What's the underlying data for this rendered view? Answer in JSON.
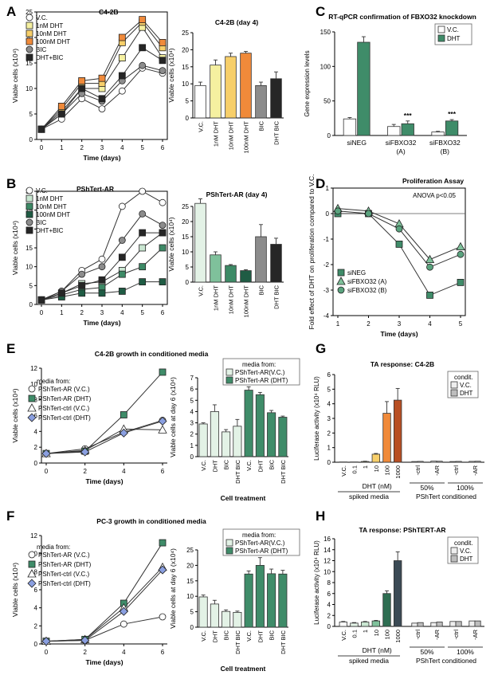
{
  "figure": {
    "colors": {
      "vc": "#ffffff",
      "dht1": "#f5f0a0",
      "dht10": "#f7cf6a",
      "dht100": "#f08a3a",
      "bic": "#8c8c8c",
      "dhtbic": "#262626",
      "g1": "#c9e6d1",
      "g2": "#7fc19b",
      "g3": "#3d8a66",
      "g4": "#1f5c44",
      "green": "#3f8c69",
      "lightgreen": "#e3f2e6",
      "darkgreen": "#2e6e52",
      "ctrl": "#eeeeee",
      "dhtgrey": "#bdbdbd",
      "blue": "#8a9fe0",
      "grey": "#bdbdbd",
      "dark": "#3b4a55"
    }
  },
  "panels": {
    "A": {
      "letter": "A"
    },
    "B": {
      "letter": "B"
    },
    "C": {
      "letter": "C"
    },
    "D": {
      "letter": "D"
    },
    "E": {
      "letter": "E"
    },
    "F": {
      "letter": "F"
    },
    "G": {
      "letter": "G"
    },
    "H": {
      "letter": "H"
    }
  },
  "chart_data": [
    {
      "id": "A_line",
      "type": "line",
      "title": "C4-2B",
      "xlabel": "Time (days)",
      "ylabel": "Viable cells (x10⁴)",
      "xlim": [
        0,
        6
      ],
      "ylim": [
        0,
        25
      ],
      "xticks": [
        0,
        1,
        2,
        3,
        4,
        5,
        6
      ],
      "yticks": [
        0,
        5,
        10,
        15,
        20,
        25
      ],
      "x": [
        0,
        1,
        2,
        3,
        4,
        5,
        6
      ],
      "series": [
        {
          "name": "V.C.",
          "marker": "circle",
          "color": "#ffffff",
          "values": [
            2,
            4,
            8,
            6,
            9.5,
            14,
            13
          ]
        },
        {
          "name": "1nM DHT",
          "marker": "square",
          "color": "#f5f0a0",
          "values": [
            2,
            5.5,
            10,
            10,
            16,
            22,
            16
          ]
        },
        {
          "name": "10nM DHT",
          "marker": "square",
          "color": "#f7cf6a",
          "values": [
            2,
            6,
            11,
            11,
            19,
            23,
            18
          ]
        },
        {
          "name": "100nM DHT",
          "marker": "square",
          "color": "#f08a3a",
          "values": [
            2,
            6.5,
            11.5,
            12,
            20,
            23.5,
            19
          ]
        },
        {
          "name": "BIC",
          "marker": "circle",
          "color": "#8c8c8c",
          "values": [
            2,
            5,
            9,
            7.5,
            11.5,
            14.5,
            13.5
          ]
        },
        {
          "name": "DHT+BIC",
          "marker": "square",
          "color": "#262626",
          "values": [
            2,
            5,
            10,
            8,
            12.5,
            18,
            15.5
          ]
        }
      ]
    },
    {
      "id": "A_bar",
      "type": "bar",
      "title": "C4-2B (day 4)",
      "ylabel": "Viable cells (x10⁴)",
      "ylim": [
        0,
        25
      ],
      "yticks": [
        0,
        5,
        10,
        15,
        20,
        25
      ],
      "categories": [
        "V.C.",
        "1nM DHT",
        "10nM DHT",
        "100nM DHT",
        "BIC",
        "DHT BIC"
      ],
      "values": [
        9.5,
        15.5,
        18,
        19,
        9.5,
        11.5
      ],
      "errors": [
        1,
        1.5,
        1,
        0.5,
        1,
        2
      ],
      "colors": [
        "#ffffff",
        "#f5f0a0",
        "#f7cf6a",
        "#f08a3a",
        "#8c8c8c",
        "#262626"
      ]
    },
    {
      "id": "B_line",
      "type": "line",
      "title": "PShTert-AR",
      "xlabel": "Time (days)",
      "ylabel": "Viable cells (x10⁴)",
      "xlim": [
        0,
        6
      ],
      "ylim": [
        0,
        30
      ],
      "xticks": [
        0,
        1,
        2,
        3,
        4,
        5,
        6
      ],
      "yticks": [
        0,
        5,
        10,
        15,
        20,
        25,
        30
      ],
      "x": [
        0,
        1,
        2,
        3,
        4,
        5,
        6
      ],
      "series": [
        {
          "name": "V.C.",
          "marker": "circle",
          "color": "#ffffff",
          "values": [
            1.2,
            3.5,
            9,
            12,
            26,
            30,
            27
          ]
        },
        {
          "name": "1nM DHT",
          "marker": "square",
          "color": "#c9e6d1",
          "values": [
            1.2,
            3,
            5.5,
            6,
            9,
            15,
            19
          ]
        },
        {
          "name": "10nM DHT",
          "marker": "square",
          "color": "#3d8a66",
          "values": [
            1.2,
            2.5,
            4,
            4.5,
            8,
            10,
            15
          ]
        },
        {
          "name": "100nM DHT",
          "marker": "square",
          "color": "#1f5c44",
          "values": [
            1.2,
            2,
            3,
            3,
            3.5,
            6,
            6
          ]
        },
        {
          "name": "BIC",
          "marker": "circle",
          "color": "#8c8c8c",
          "values": [
            1.2,
            3.5,
            8,
            10,
            17,
            24,
            21
          ]
        },
        {
          "name": "DHT+BIC",
          "marker": "square",
          "color": "#262626",
          "values": [
            1.2,
            3,
            5,
            6.5,
            12.5,
            19,
            19
          ]
        }
      ]
    },
    {
      "id": "B_bar",
      "type": "bar",
      "title": "PShTert-AR (day 4)",
      "ylabel": "Viable cells (x10⁴)",
      "ylim": [
        0,
        25
      ],
      "yticks": [
        0,
        5,
        10,
        15,
        20,
        25
      ],
      "categories": [
        "V.C.",
        "1nM DHT",
        "10nM DHT",
        "100nM DHT",
        "BIC",
        "DHT BIC"
      ],
      "values": [
        26,
        9,
        5.5,
        3.8,
        15,
        12.5
      ],
      "errors": [
        1.5,
        1,
        0.3,
        0.3,
        4,
        2
      ],
      "colors": [
        "#e3f2e6",
        "#7fc19b",
        "#3d8a66",
        "#1f5c44",
        "#8c8c8c",
        "#262626"
      ]
    },
    {
      "id": "C_bar",
      "type": "bar",
      "title": "RT-qPCR confirmation of FBXO32 knockdown",
      "ylabel": "Gene expression levels",
      "ylim": [
        0,
        150
      ],
      "yticks": [
        0,
        50,
        100,
        150
      ],
      "categories": [
        "siNEG",
        "siFBXO32 (A)",
        "siFBXO32 (B)"
      ],
      "series": [
        {
          "name": "V.C.",
          "color": "#ffffff",
          "values": [
            24,
            13,
            5
          ],
          "errors": [
            2,
            3,
            1
          ]
        },
        {
          "name": "DHT",
          "color": "#3f8c69",
          "values": [
            135,
            17,
            21
          ],
          "errors": [
            8,
            4,
            2
          ]
        }
      ],
      "annotations": [
        "***",
        "***"
      ]
    },
    {
      "id": "D_line",
      "type": "line",
      "title": "Proliferation Assay",
      "annotation": "ANOVA p<0.05",
      "xlabel": "Time (days)",
      "ylabel": "Fold effect of DHT on proliferation compared to V.C.",
      "xlim": [
        1,
        5
      ],
      "ylim": [
        -4,
        1
      ],
      "xticks": [
        1,
        2,
        3,
        4,
        5
      ],
      "yticks": [
        1,
        0,
        -1,
        -2,
        -3,
        -4
      ],
      "x": [
        1,
        2,
        3,
        4,
        5
      ],
      "series": [
        {
          "name": "siNEG",
          "marker": "square",
          "color": "#3f8c69",
          "values": [
            0,
            0,
            -1.2,
            -3.2,
            -2.7
          ]
        },
        {
          "name": "siFBXO32 (A)",
          "marker": "triangle",
          "color": "#7fc19b",
          "values": [
            0.2,
            0.1,
            -0.4,
            -1.8,
            -1.3
          ]
        },
        {
          "name": "siFBXO32 (B)",
          "marker": "circle",
          "color": "#5aa37e",
          "values": [
            0.1,
            0,
            -0.6,
            -2.1,
            -1.6
          ]
        }
      ]
    },
    {
      "id": "E_line",
      "type": "line",
      "title": "C4-2B growth in conditioned media",
      "legend_title": "media from:",
      "xlabel": "Time (days)",
      "ylabel": "Viable cells (x10⁴)",
      "xlim": [
        0,
        6
      ],
      "ylim": [
        0,
        12
      ],
      "xticks": [
        0,
        2,
        4,
        6
      ],
      "yticks": [
        0,
        2,
        4,
        6,
        8,
        10,
        12
      ],
      "x": [
        0,
        2,
        4,
        6
      ],
      "series": [
        {
          "name": "PShTert-AR (V.C.)",
          "marker": "circle",
          "color": "#ffffff",
          "values": [
            1.2,
            1.8,
            3.9,
            5.4
          ]
        },
        {
          "name": "PShTert-AR (DHT)",
          "marker": "square",
          "color": "#3f8c69",
          "values": [
            1.2,
            1.5,
            6.1,
            11.5
          ]
        },
        {
          "name": "PShTert-ctrl (V.C.)",
          "marker": "triangle",
          "color": "#ffffff",
          "values": [
            1.2,
            1.6,
            4.3,
            4.2
          ]
        },
        {
          "name": "PShTert-ctrl (DHT)",
          "marker": "diamond",
          "color": "#8a9fe0",
          "values": [
            1.2,
            1.4,
            3.8,
            5.3
          ]
        }
      ]
    },
    {
      "id": "E_bar",
      "type": "bar",
      "legend_title": "media from:",
      "xlabel": "Cell treatment",
      "ylabel": "Viable cells at day 6 (x10⁴)",
      "ylim": [
        0,
        7
      ],
      "yticks": [
        0,
        1,
        2,
        3,
        4,
        5,
        6,
        7
      ],
      "categories": [
        "V.C.",
        "DHT",
        "BIC",
        "DHT BIC",
        "V.C.",
        "DHT",
        "BIC",
        "DHT BIC"
      ],
      "values": [
        2.9,
        4.0,
        2.2,
        2.7,
        5.9,
        5.5,
        3.9,
        3.5
      ],
      "errors": [
        0.1,
        0.6,
        0.2,
        0.6,
        0.3,
        0.2,
        0.2,
        0.1
      ],
      "groups": [
        {
          "name": "PShTert-AR(V.C.)",
          "color": "#e3f2e6"
        },
        {
          "name": "PShTert-AR (DHT)",
          "color": "#3f8c69"
        }
      ]
    },
    {
      "id": "F_line",
      "type": "line",
      "title": "PC-3 growth in conditioned media",
      "legend_title": "media from:",
      "xlabel": "Time (days)",
      "ylabel": "Viable cells (x10⁴)",
      "xlim": [
        0,
        6
      ],
      "ylim": [
        0,
        12
      ],
      "xticks": [
        0,
        2,
        4,
        6
      ],
      "yticks": [
        0,
        2,
        4,
        6,
        8,
        10,
        12
      ],
      "x": [
        0,
        2,
        4,
        6
      ],
      "series": [
        {
          "name": "PShTert-AR (V.C.)",
          "marker": "circle",
          "color": "#ffffff",
          "values": [
            0.3,
            0.4,
            2.2,
            3.0
          ]
        },
        {
          "name": "PShTert-AR (DHT)",
          "marker": "square",
          "color": "#3f8c69",
          "values": [
            0.3,
            0.5,
            4.5,
            11.2
          ]
        },
        {
          "name": "PShTert-ctrl (V.C.)",
          "marker": "triangle",
          "color": "#ffffff",
          "values": [
            0.3,
            0.5,
            4.0,
            8.5
          ]
        },
        {
          "name": "PShTert-ctrl (DHT)",
          "marker": "diamond",
          "color": "#8a9fe0",
          "values": [
            0.3,
            0.4,
            3.6,
            8.2
          ]
        }
      ]
    },
    {
      "id": "F_bar",
      "type": "bar",
      "legend_title": "media from:",
      "xlabel": "Cell treatment",
      "ylabel": "Viable cells at day 6 (x10⁴)",
      "ylim": [
        0,
        25
      ],
      "yticks": [
        0,
        5,
        10,
        15,
        20,
        25
      ],
      "categories": [
        "V.C.",
        "DHT",
        "BIC",
        "DHT BIC",
        "V.C.",
        "DHT",
        "BIC",
        "DHT BIC"
      ],
      "values": [
        9.8,
        7.5,
        5.1,
        4.8,
        17.2,
        20.0,
        17.3,
        17.2
      ],
      "errors": [
        0.6,
        1.2,
        0.5,
        0.4,
        1.0,
        2.5,
        1.5,
        1.2
      ],
      "groups": [
        {
          "name": "PShTert-AR(V.C.)",
          "color": "#e3f2e6"
        },
        {
          "name": "PShTert-AR (DHT)",
          "color": "#3f8c69"
        }
      ]
    },
    {
      "id": "G_bar",
      "type": "bar",
      "title": "TA response: C4-2B",
      "legend_title": "condit.",
      "ylabel": "Luciferase activity (x10⁴ RLU)",
      "ylim": [
        0,
        6
      ],
      "yticks": [
        0,
        1,
        2,
        3,
        4,
        5,
        6
      ],
      "categories": [
        "V.C.",
        "0.1",
        "1",
        "10",
        "100",
        "1000"
      ],
      "values": [
        0.02,
        0.02,
        0.05,
        0.55,
        3.35,
        4.25
      ],
      "errors": [
        0,
        0,
        0.02,
        0.05,
        0.8,
        0.8
      ],
      "colors": [
        "#ffffff",
        "#fbf7c8",
        "#f5f0a0",
        "#f7cf6a",
        "#f08a3a",
        "#b84f23"
      ],
      "group_label_dht": "DHT (nM)",
      "group_label_spiked": "spiked media",
      "conditioned": {
        "label": "PShTert conditioned",
        "categories": [
          "-ctrl",
          "-AR",
          "-ctrl",
          "-AR"
        ],
        "sublabels": [
          "50%",
          "100%"
        ],
        "series": [
          {
            "name": "V.C.",
            "color": "#eeeeee",
            "values": [
              0.05,
              0.08,
              0.05,
              0.06
            ]
          },
          {
            "name": "DHT",
            "color": "#bdbdbd",
            "values": [
              0.06,
              0.07,
              0.06,
              0.07
            ]
          }
        ]
      }
    },
    {
      "id": "H_bar",
      "type": "bar",
      "title": "TA response: PShTERT-AR",
      "legend_title": "condit.",
      "ylabel": "Luciferase activity (x10⁴ RLU)",
      "ylim": [
        0,
        16
      ],
      "yticks": [
        0,
        2,
        4,
        6,
        8,
        10,
        12,
        14,
        16
      ],
      "categories": [
        "V.C.",
        "0.1",
        "1",
        "10",
        "100",
        "1000"
      ],
      "values": [
        0.8,
        0.6,
        0.8,
        1.0,
        6.0,
        12.0
      ],
      "errors": [
        0.1,
        0.1,
        0.1,
        0.1,
        0.5,
        1.6
      ],
      "colors": [
        "#ffffff",
        "#e3f2e6",
        "#c9e6d1",
        "#7fc19b",
        "#2e6e52",
        "#3b4a55"
      ],
      "group_label_dht": "DHT (nM)",
      "group_label_spiked": "spiked media",
      "conditioned": {
        "label": "PShTert conditioned",
        "categories": [
          "-ctrl",
          "-AR",
          "-ctrl",
          "-AR"
        ],
        "sublabels": [
          "50%",
          "100%"
        ],
        "series": [
          {
            "name": "V.C.",
            "color": "#eeeeee",
            "values": [
              0.6,
              0.7,
              0.9,
              1.0
            ]
          },
          {
            "name": "DHT",
            "color": "#bdbdbd",
            "values": [
              0.7,
              0.8,
              0.9,
              1.0
            ]
          }
        ]
      }
    }
  ]
}
